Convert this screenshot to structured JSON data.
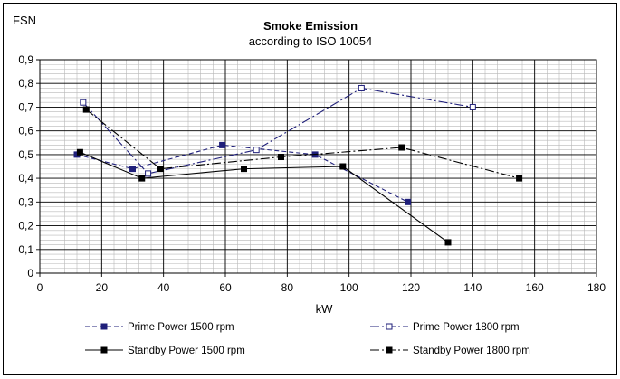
{
  "chart_data": {
    "type": "line",
    "title": "Smoke Emission",
    "subtitle": "according to ISO 10054",
    "ylabel": "FSN",
    "xlabel": "kW",
    "xlim": [
      0,
      180
    ],
    "ylim": [
      0,
      0.9
    ],
    "x_ticks": [
      0,
      20,
      40,
      60,
      80,
      100,
      120,
      140,
      160,
      180
    ],
    "x_tick_labels": [
      "0",
      "20",
      "40",
      "60",
      "80",
      "100",
      "120",
      "140",
      "160",
      "180"
    ],
    "y_ticks": [
      0,
      0.1,
      0.2,
      0.3,
      0.4,
      0.5,
      0.6,
      0.7,
      0.8,
      0.9
    ],
    "y_tick_labels": [
      "0",
      "0,1",
      "0,2",
      "0,3",
      "0,4",
      "0,5",
      "0,6",
      "0,7",
      "0,8",
      "0,9"
    ],
    "grid": true,
    "legend_position": "bottom",
    "series": [
      {
        "name": "Prime Power  1500 rpm",
        "color": "#1f1f7a",
        "line_style": "dashed",
        "marker": "filled-square",
        "x": [
          12,
          30,
          59,
          89,
          119
        ],
        "y": [
          0.5,
          0.44,
          0.54,
          0.5,
          0.3
        ]
      },
      {
        "name": "Prime Power  1800 rpm",
        "color": "#1f1f7a",
        "line_style": "dash-dot",
        "marker": "open-square",
        "x": [
          14,
          35,
          70,
          104,
          140
        ],
        "y": [
          0.72,
          0.42,
          0.52,
          0.78,
          0.7
        ]
      },
      {
        "name": "Standby Power  1500 rpm",
        "color": "#000000",
        "line_style": "solid",
        "marker": "filled-square",
        "x": [
          13,
          33,
          66,
          98,
          132
        ],
        "y": [
          0.51,
          0.4,
          0.44,
          0.45,
          0.13
        ]
      },
      {
        "name": "Standby Power  1800 rpm",
        "color": "#000000",
        "line_style": "dash-dot",
        "marker": "filled-square",
        "x": [
          15,
          39,
          78,
          117,
          155
        ],
        "y": [
          0.69,
          0.44,
          0.49,
          0.53,
          0.4
        ]
      }
    ]
  }
}
